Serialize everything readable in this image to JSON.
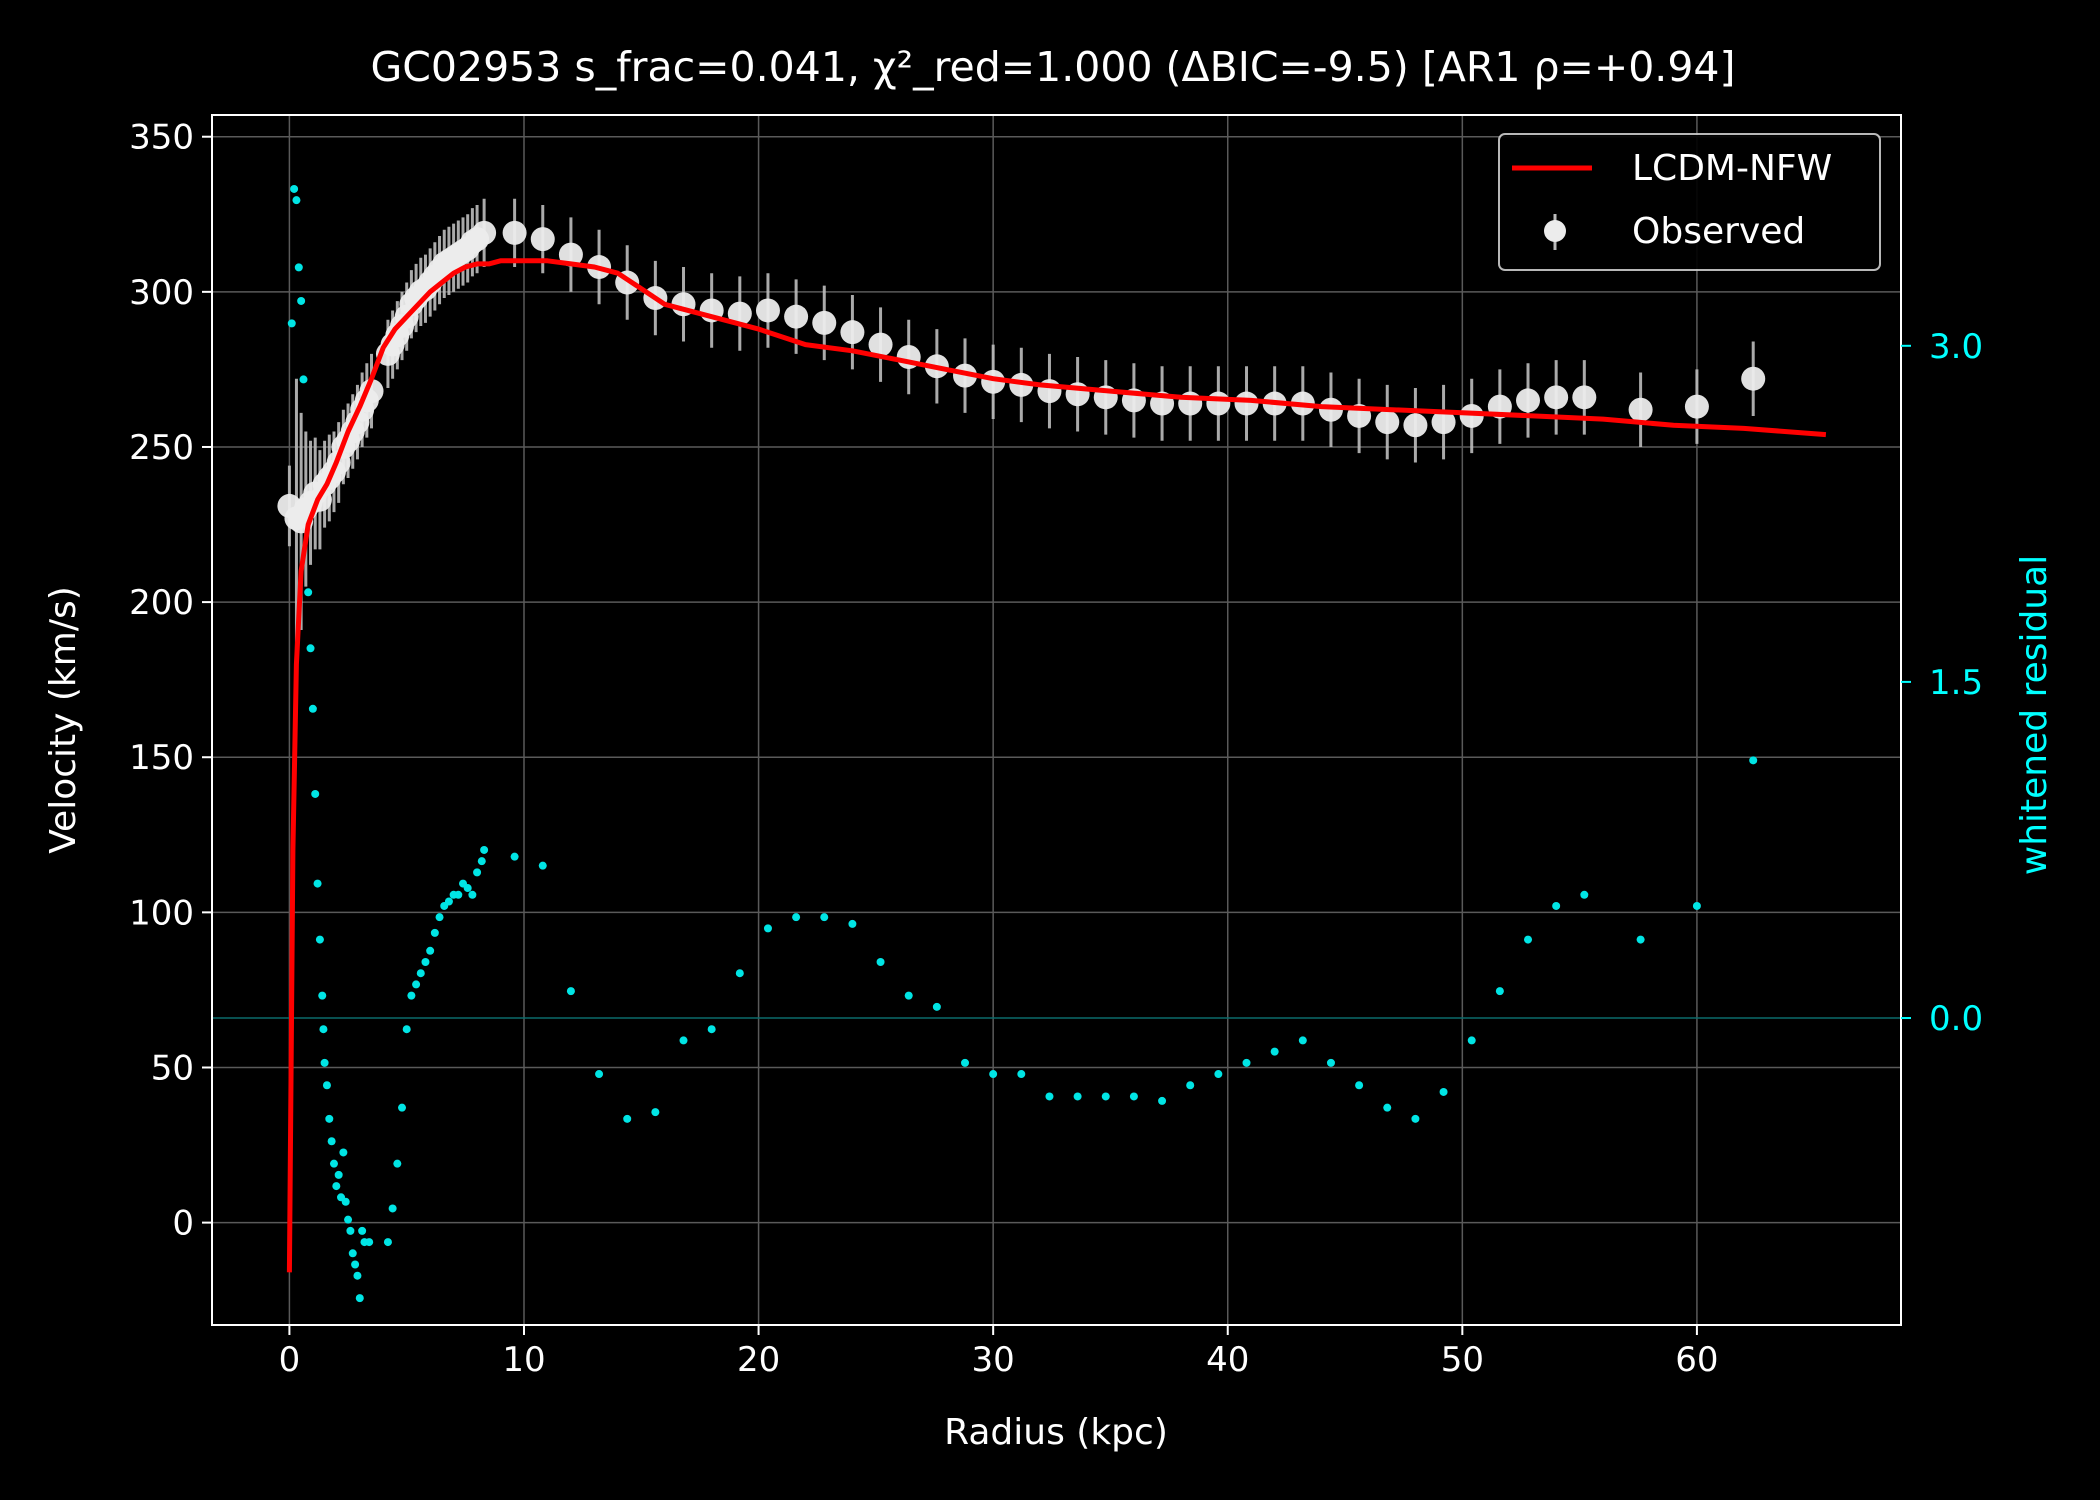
{
  "chart_data": {
    "type": "scatter",
    "title": "GC02953  s_frac=0.041, χ²_red=1.000  (ΔBIC=-9.5) [AR1 ρ=+0.94]",
    "xlabel": "Radius (kpc)",
    "ylabel": "Velocity (km/s)",
    "ylabel_right": "whitened residual",
    "xlim": [
      -3.3,
      68.7
    ],
    "ylim": [
      -33,
      357
    ],
    "ylim_right": [
      -1.37,
      4.03
    ],
    "x_ticks": [
      "0",
      "10",
      "20",
      "30",
      "40",
      "50",
      "60"
    ],
    "y_ticks": [
      "0",
      "50",
      "100",
      "150",
      "200",
      "250",
      "300",
      "350"
    ],
    "y_ticks_right": [
      "0.0",
      "1.5",
      "3.0"
    ],
    "grid": true,
    "legend_position": "top-right",
    "colors": {
      "background": "#000000",
      "model": "#ff0000",
      "observed": "#ececec",
      "residual": "#00e5e5",
      "grid": "#5a5a5a",
      "axis": "#ffffff",
      "right_axis": "#00ffff"
    },
    "series": [
      {
        "name": "LCDM-NFW",
        "kind": "line",
        "x": [
          0.0,
          0.15,
          0.3,
          0.5,
          0.8,
          1.2,
          1.6,
          2.0,
          2.5,
          3.0,
          3.5,
          4.0,
          4.5,
          5.0,
          5.5,
          6.0,
          6.5,
          7.0,
          7.5,
          8.0,
          8.5,
          9.0,
          10.0,
          11.0,
          12.0,
          13.0,
          14.0,
          15.0,
          16.0,
          18.0,
          20.0,
          22.0,
          24.0,
          26.0,
          28.0,
          30.0,
          32.0,
          35.0,
          38.0,
          41.0,
          44.0,
          47.0,
          50.0,
          53.0,
          56.0,
          59.0,
          62.0,
          65.5
        ],
        "y": [
          -16,
          120,
          180,
          210,
          225,
          233,
          238,
          245,
          255,
          263,
          272,
          282,
          288,
          292,
          296,
          300,
          303,
          306,
          308,
          309,
          309,
          310,
          310,
          310,
          309,
          308,
          306,
          301,
          296,
          292,
          288,
          283,
          281,
          278,
          275,
          272,
          270,
          268,
          266,
          265,
          263,
          262,
          261,
          260,
          259,
          257,
          256,
          254
        ]
      },
      {
        "name": "Observed",
        "kind": "errorbar",
        "x": [
          0.0,
          0.3,
          0.5,
          0.7,
          0.9,
          1.1,
          1.3,
          1.5,
          1.7,
          1.9,
          2.1,
          2.3,
          2.5,
          2.7,
          2.9,
          3.1,
          3.3,
          3.5,
          4.2,
          4.4,
          4.6,
          4.8,
          5.0,
          5.2,
          5.4,
          5.6,
          5.8,
          6.0,
          6.2,
          6.4,
          6.6,
          6.8,
          7.0,
          7.2,
          7.4,
          7.6,
          7.8,
          8.0,
          8.3,
          9.6,
          10.8,
          12.0,
          13.2,
          14.4,
          15.6,
          16.8,
          18.0,
          19.2,
          20.4,
          21.6,
          22.8,
          24.0,
          25.2,
          26.4,
          27.6,
          28.8,
          30.0,
          31.2,
          32.4,
          33.6,
          34.8,
          36.0,
          37.2,
          38.4,
          39.6,
          40.8,
          42.0,
          43.2,
          44.4,
          45.6,
          46.8,
          48.0,
          49.2,
          50.4,
          51.6,
          52.8,
          54.0,
          55.2,
          57.6,
          60.0,
          62.4
        ],
        "y": [
          231,
          227,
          226,
          230,
          232,
          235,
          233,
          238,
          240,
          242,
          245,
          250,
          252,
          255,
          258,
          262,
          265,
          268,
          280,
          283,
          286,
          289,
          292,
          296,
          298,
          300,
          301,
          303,
          305,
          307,
          309,
          310,
          311,
          312,
          313,
          314,
          316,
          317,
          319,
          319,
          317,
          312,
          308,
          303,
          298,
          296,
          294,
          293,
          294,
          292,
          290,
          287,
          283,
          279,
          276,
          273,
          271,
          270,
          268,
          267,
          266,
          265,
          264,
          264,
          264,
          264,
          264,
          264,
          262,
          260,
          258,
          257,
          258,
          260,
          263,
          265,
          266,
          266,
          262,
          263,
          272
        ],
        "err": [
          13,
          45,
          35,
          25,
          20,
          18,
          16,
          14,
          14,
          13,
          13,
          12,
          12,
          12,
          12,
          12,
          12,
          12,
          11,
          11,
          11,
          11,
          11,
          11,
          11,
          11,
          11,
          11,
          11,
          11,
          11,
          11,
          11,
          11,
          11,
          11,
          11,
          11,
          11,
          11,
          11,
          12,
          12,
          12,
          12,
          12,
          12,
          12,
          12,
          12,
          12,
          12,
          12,
          12,
          12,
          12,
          12,
          12,
          12,
          12,
          12,
          12,
          12,
          12,
          12,
          12,
          12,
          12,
          12,
          12,
          12,
          12,
          12,
          12,
          12,
          12,
          12,
          12,
          12,
          12,
          12
        ]
      },
      {
        "name": "whitened residual",
        "kind": "scatter",
        "axis": "right",
        "x": [
          0.1,
          0.2,
          0.3,
          0.4,
          0.5,
          0.6,
          0.7,
          0.8,
          0.9,
          1.0,
          1.1,
          1.2,
          1.3,
          1.4,
          1.45,
          1.5,
          1.6,
          1.7,
          1.8,
          1.9,
          2.0,
          2.1,
          2.2,
          2.3,
          2.4,
          2.5,
          2.6,
          2.7,
          2.8,
          2.9,
          3.0,
          3.1,
          3.2,
          3.4,
          4.2,
          4.4,
          4.6,
          4.8,
          5.0,
          5.2,
          5.4,
          5.6,
          5.8,
          6.0,
          6.2,
          6.4,
          6.6,
          6.8,
          7.0,
          7.2,
          7.4,
          7.6,
          7.8,
          8.0,
          8.2,
          8.3,
          9.6,
          10.8,
          12.0,
          13.2,
          14.4,
          15.6,
          16.8,
          18.0,
          19.2,
          20.4,
          21.6,
          22.8,
          24.0,
          25.2,
          26.4,
          27.6,
          28.8,
          30.0,
          31.2,
          32.4,
          33.6,
          34.8,
          36.0,
          37.2,
          38.4,
          39.6,
          40.8,
          42.0,
          43.2,
          44.4,
          45.6,
          46.8,
          48.0,
          49.2,
          50.4,
          51.6,
          52.8,
          54.0,
          55.2,
          57.6,
          60.0,
          62.4
        ],
        "y": [
          3.1,
          3.7,
          3.65,
          3.35,
          3.2,
          2.85,
          2.2,
          1.9,
          1.65,
          1.38,
          1.0,
          0.6,
          0.35,
          0.1,
          -0.05,
          -0.2,
          -0.3,
          -0.45,
          -0.55,
          -0.65,
          -0.75,
          -0.7,
          -0.8,
          -0.6,
          -0.82,
          -0.9,
          -0.95,
          -1.05,
          -1.1,
          -1.15,
          -1.25,
          -0.95,
          -1.0,
          -1.0,
          -1.0,
          -0.85,
          -0.65,
          -0.4,
          -0.05,
          0.1,
          0.15,
          0.2,
          0.25,
          0.3,
          0.38,
          0.45,
          0.5,
          0.52,
          0.55,
          0.55,
          0.6,
          0.58,
          0.55,
          0.65,
          0.7,
          0.75,
          0.72,
          0.68,
          0.12,
          -0.25,
          -0.45,
          -0.42,
          -0.1,
          -0.05,
          0.2,
          0.4,
          0.45,
          0.45,
          0.42,
          0.25,
          0.1,
          0.05,
          -0.2,
          -0.25,
          -0.25,
          -0.35,
          -0.35,
          -0.35,
          -0.35,
          -0.37,
          -0.3,
          -0.25,
          -0.2,
          -0.15,
          -0.1,
          -0.2,
          -0.3,
          -0.4,
          -0.45,
          -0.33,
          -0.1,
          0.12,
          0.35,
          0.5,
          0.55,
          0.35,
          0.5,
          1.15
        ]
      }
    ]
  }
}
